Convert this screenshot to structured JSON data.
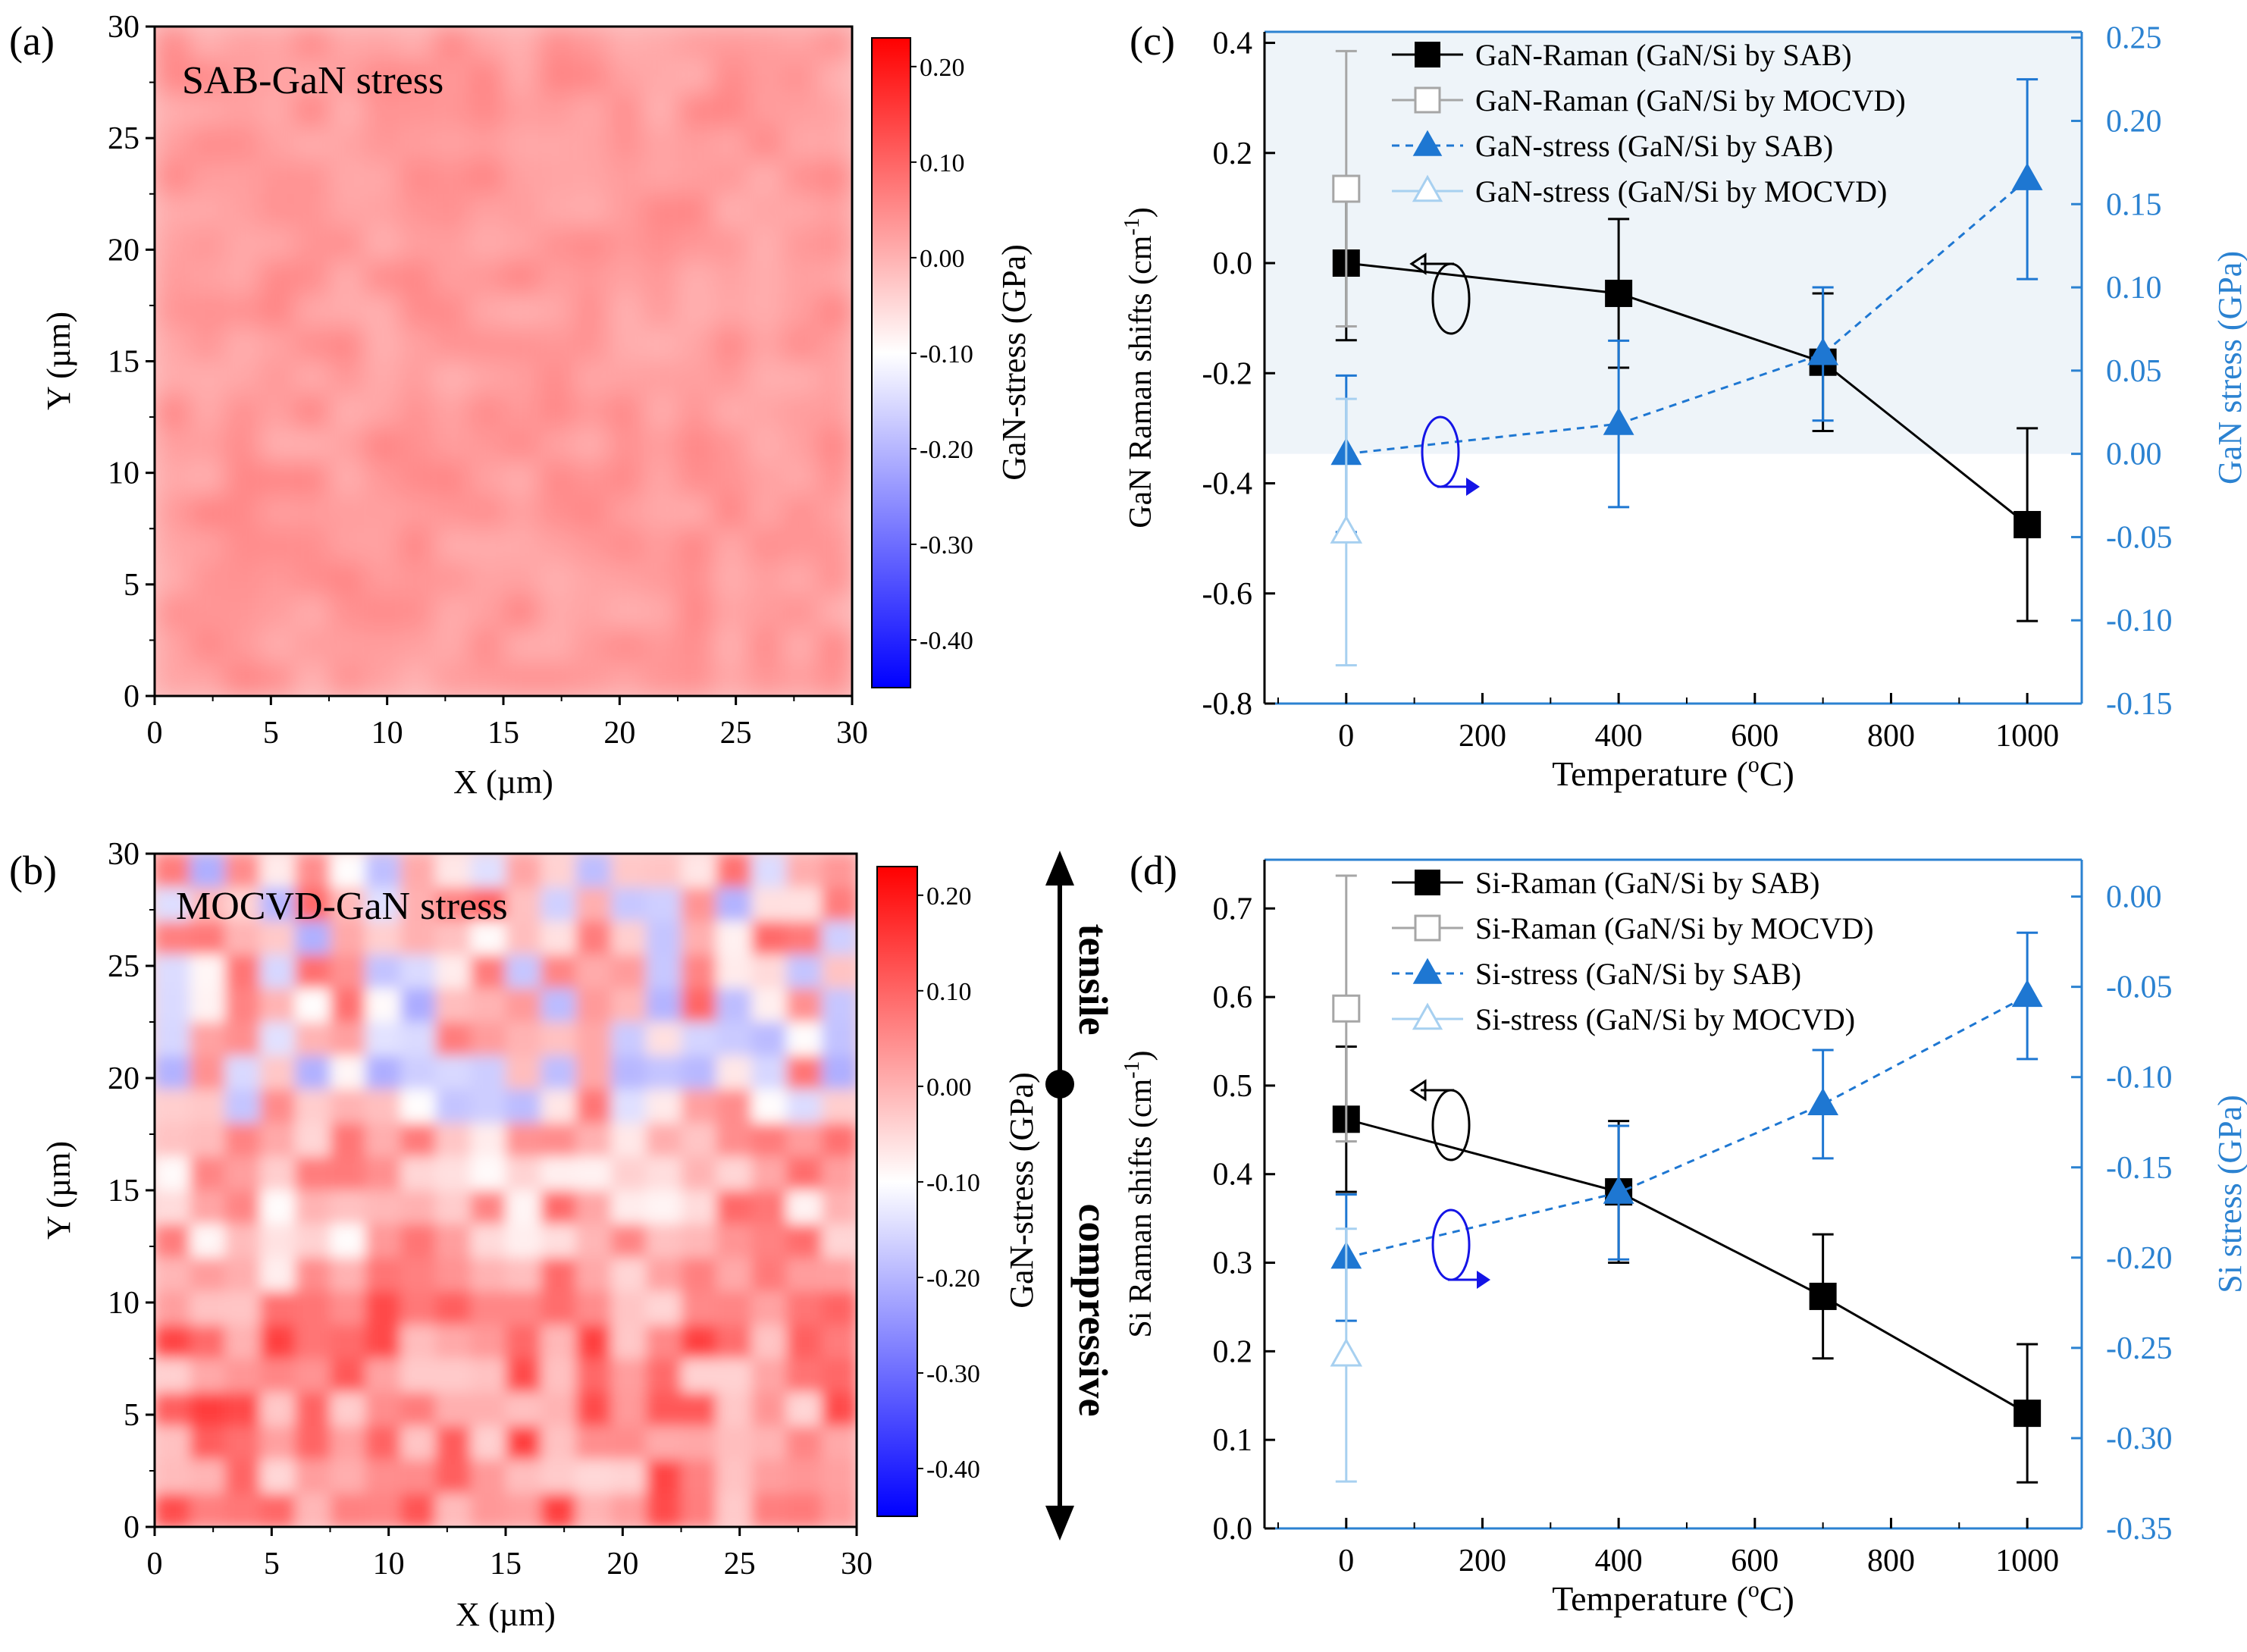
{
  "panels": {
    "a": {
      "panel_label": "(a)",
      "map_title": "SAB-GaN stress",
      "xlabel": "X (µm)",
      "ylabel": "Y (µm)",
      "colorbar_label": "GaN-stress (GPa)"
    },
    "b": {
      "panel_label": "(b)",
      "map_title": "MOCVD-GaN stress",
      "xlabel": "X (µm)",
      "ylabel": "Y (µm)",
      "colorbar_label": "GaN-stress (GPa)"
    },
    "c": {
      "panel_label": "(c)"
    },
    "d": {
      "panel_label": "(d)"
    }
  },
  "annotations": {
    "tensile": "tensile",
    "compressive": "compressive"
  },
  "colors": {
    "black_series": "#000000",
    "gray_series": "#a6a6a6",
    "blue_series": "#1e77d2",
    "light_blue_series": "#a7d0f0",
    "right_axis": "#2b82d1",
    "shade": "#eef4f9",
    "arrow_blue": "#1414e6",
    "cmap_neg": "#0000ff",
    "cmap_mid": "#ffffff",
    "cmap_pos": "#ff0000"
  },
  "chart_data": [
    {
      "id": "a",
      "type": "heatmap",
      "title": "SAB-GaN stress",
      "xlabel": "X (µm)",
      "ylabel": "Y (µm)",
      "xlim": [
        0,
        30
      ],
      "ylim": [
        0,
        30
      ],
      "xticks": [
        "0",
        "5",
        "10",
        "15",
        "20",
        "25",
        "30"
      ],
      "yticks": [
        "0",
        "5",
        "10",
        "15",
        "20",
        "25",
        "30"
      ],
      "colorbar": {
        "label": "GaN-stress (GPa)",
        "range": [
          -0.45,
          0.23
        ],
        "ticks": [
          "0.20",
          "0.10",
          "0.00",
          "-0.10",
          "-0.20",
          "-0.30",
          "-0.40"
        ],
        "tick_values": [
          0.2,
          0.1,
          0.0,
          -0.1,
          -0.2,
          -0.3,
          -0.4
        ]
      },
      "z_mean": 0.03,
      "z_spread": 0.03
    },
    {
      "id": "b",
      "type": "heatmap",
      "title": "MOCVD-GaN stress",
      "xlabel": "X (µm)",
      "ylabel": "Y (µm)",
      "xlim": [
        0,
        30
      ],
      "ylim": [
        0,
        30
      ],
      "xticks": [
        "0",
        "5",
        "10",
        "15",
        "20",
        "25",
        "30"
      ],
      "yticks": [
        "0",
        "5",
        "10",
        "15",
        "20",
        "25",
        "30"
      ],
      "colorbar": {
        "label": "GaN-stress (GPa)",
        "range": [
          -0.45,
          0.23
        ],
        "ticks": [
          "0.20",
          "0.10",
          "0.00",
          "-0.10",
          "-0.20",
          "-0.30",
          "-0.40"
        ],
        "tick_values": [
          0.2,
          0.1,
          0.0,
          -0.1,
          -0.2,
          -0.3,
          -0.4
        ]
      },
      "z_mean": 0.0,
      "z_spread": 0.1
    },
    {
      "id": "c",
      "type": "line",
      "xlabel": "Temperature (",
      "xlabel_sup": "o",
      "xlabel_end": "C)",
      "ylabel": "GaN Raman shifts (cm",
      "ylabel_sup": "-1",
      "ylabel_end": ")",
      "y2label": "GaN stress (GPa)",
      "xlim": [
        -120,
        1080
      ],
      "ylim": [
        -0.8,
        0.42
      ],
      "y2lim": [
        -0.15,
        0.2535
      ],
      "xticks": [
        0,
        200,
        400,
        600,
        800,
        1000
      ],
      "yticks": [
        "0.4",
        "0.2",
        "0.0",
        "-0.2",
        "-0.4",
        "-0.6",
        "-0.8"
      ],
      "ytick_values": [
        0.4,
        0.2,
        0.0,
        -0.2,
        -0.4,
        -0.6,
        -0.8
      ],
      "y2ticks": [
        "0.25",
        "0.20",
        "0.15",
        "0.10",
        "0.05",
        "0.00",
        "-0.05",
        "-0.10",
        "-0.15"
      ],
      "y2tick_values": [
        0.25,
        0.2,
        0.15,
        0.1,
        0.05,
        0.0,
        -0.05,
        -0.1,
        -0.15
      ],
      "shaded_region": {
        "y2_from": 0.0,
        "y2_to": 0.2535
      },
      "legend_position": "top",
      "series": [
        {
          "name": "GaN-Raman (GaN/Si by SAB)",
          "axis": "left",
          "marker": "square-filled",
          "line": "solid",
          "color": "#000000",
          "x": [
            0,
            400,
            700,
            1000
          ],
          "y": [
            0.0,
            -0.055,
            -0.18,
            -0.475
          ],
          "err": [
            0.14,
            0.135,
            0.125,
            0.175
          ]
        },
        {
          "name": "GaN-Raman (GaN/Si by MOCVD)",
          "axis": "left",
          "marker": "square-open",
          "line": "none",
          "color": "#a6a6a6",
          "x": [
            0
          ],
          "y": [
            0.135
          ],
          "err": [
            0.25
          ]
        },
        {
          "name": "GaN-stress (GaN/Si by SAB)",
          "axis": "right",
          "marker": "triangle-filled",
          "line": "dashed",
          "color": "#1e77d2",
          "x": [
            0,
            400,
            700,
            1000
          ],
          "y": [
            0.0,
            0.018,
            0.06,
            0.165
          ],
          "err": [
            0.047,
            0.05,
            0.04,
            0.06
          ]
        },
        {
          "name": "GaN-stress (GaN/Si by MOCVD)",
          "axis": "right",
          "marker": "triangle-open",
          "line": "none",
          "color": "#a7d0f0",
          "x": [
            0
          ],
          "y": [
            -0.047
          ],
          "err": [
            0.08
          ]
        }
      ]
    },
    {
      "id": "d",
      "type": "line",
      "xlabel": "Temperature (",
      "xlabel_sup": "o",
      "xlabel_end": "C)",
      "ylabel": "Si Raman shifts (cm",
      "ylabel_sup": "-1",
      "ylabel_end": ")",
      "y2label": "Si stress (GPa)",
      "xlim": [
        -120,
        1080
      ],
      "ylim": [
        0.0,
        0.755
      ],
      "y2lim": [
        -0.35,
        0.0204
      ],
      "xticks": [
        0,
        200,
        400,
        600,
        800,
        1000
      ],
      "yticks": [
        "0.7",
        "0.6",
        "0.5",
        "0.4",
        "0.3",
        "0.2",
        "0.1",
        "0.0"
      ],
      "ytick_values": [
        0.7,
        0.6,
        0.5,
        0.4,
        0.3,
        0.2,
        0.1,
        0.0
      ],
      "y2ticks": [
        "0.00",
        "-0.05",
        "-0.10",
        "-0.15",
        "-0.20",
        "-0.25",
        "-0.30",
        "-0.35"
      ],
      "y2tick_values": [
        0.0,
        -0.05,
        -0.1,
        -0.15,
        -0.2,
        -0.25,
        -0.3,
        -0.35
      ],
      "legend_position": "top",
      "series": [
        {
          "name": "Si-Raman (GaN/Si by SAB)",
          "axis": "left",
          "marker": "square-filled",
          "line": "solid",
          "color": "#000000",
          "x": [
            0,
            400,
            700,
            1000
          ],
          "y": [
            0.462,
            0.38,
            0.262,
            0.13
          ],
          "err": [
            0.082,
            0.08,
            0.07,
            0.078
          ]
        },
        {
          "name": "Si-Raman (GaN/Si by MOCVD)",
          "axis": "left",
          "marker": "square-open",
          "line": "none",
          "color": "#a6a6a6",
          "x": [
            0
          ],
          "y": [
            0.587
          ],
          "err": [
            0.15
          ]
        },
        {
          "name": "Si-stress (GaN/Si by SAB)",
          "axis": "right",
          "marker": "triangle-filled",
          "line": "dashed",
          "color": "#1e77d2",
          "x": [
            0,
            400,
            700,
            1000
          ],
          "y": [
            -0.2,
            -0.164,
            -0.115,
            -0.055
          ],
          "err": [
            0.035,
            0.037,
            0.03,
            0.035
          ]
        },
        {
          "name": "Si-stress (GaN/Si by MOCVD)",
          "axis": "right",
          "marker": "triangle-open",
          "line": "none",
          "color": "#a7d0f0",
          "x": [
            0
          ],
          "y": [
            -0.254
          ],
          "err": [
            0.07
          ]
        }
      ]
    }
  ]
}
